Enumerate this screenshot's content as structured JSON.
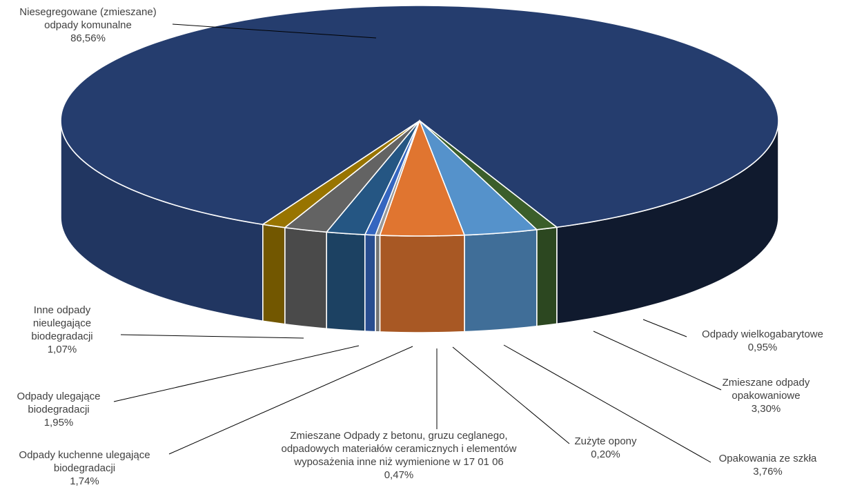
{
  "chart_data": {
    "type": "pie",
    "style": "3d",
    "slices": [
      {
        "label": "Niesegregowane (zmieszane) odpady komunalne",
        "label_lines": [
          "Niesegregowane (zmieszane)",
          "odpady komunalne"
        ],
        "value": 86.56,
        "value_label": "86,56%",
        "color": "#253d6e"
      },
      {
        "label": "Odpady wielkogabarytowe",
        "label_lines": [
          "Odpady wielkogabarytowe"
        ],
        "value": 0.95,
        "value_label": "0,95%",
        "color": "#3b5e2a"
      },
      {
        "label": "Zmieszane odpady opakowaniowe",
        "label_lines": [
          "Zmieszane odpady",
          "opakowaniowe"
        ],
        "value": 3.3,
        "value_label": "3,30%",
        "color": "#5592cb"
      },
      {
        "label": "Opakowania ze szkła",
        "label_lines": [
          "Opakowania ze szkła"
        ],
        "value": 3.76,
        "value_label": "3,76%",
        "color": "#e07530"
      },
      {
        "label": "Zużyte opony",
        "label_lines": [
          "Zużyte opony"
        ],
        "value": 0.2,
        "value_label": "0,20%",
        "color": "#9a9a9a"
      },
      {
        "label": "Zmieszane Odpady z betonu, gruzu ceglanego, odpadowych materiałów ceramicznych i elementów wyposażenia inne niż wymienione w 17 01 06",
        "label_lines": [
          "Zmieszane Odpady z betonu, gruzu ceglanego,",
          "odpadowych materiałów ceramicznych i elementów",
          "wyposażenia inne niż wymienione w 17 01 06"
        ],
        "value": 0.47,
        "value_label": "0,47%",
        "color": "#3566c0"
      },
      {
        "label": "Odpady kuchenne ulegające biodegradacji",
        "label_lines": [
          "Odpady kuchenne ulegające",
          "biodegradacji"
        ],
        "value": 1.74,
        "value_label": "1,74%",
        "color": "#255683"
      },
      {
        "label": "Odpady ulegające biodegradacji",
        "label_lines": [
          "Odpady ulegające",
          "biodegradacji"
        ],
        "value": 1.95,
        "value_label": "1,95%",
        "color": "#636363"
      },
      {
        "label": "Inne odpady nieulegające biodegradacji",
        "label_lines": [
          "Inne odpady",
          "nieulegające",
          "biodegradacji"
        ],
        "value": 1.07,
        "value_label": "1,07%",
        "color": "#987400"
      }
    ],
    "legend": "none"
  }
}
